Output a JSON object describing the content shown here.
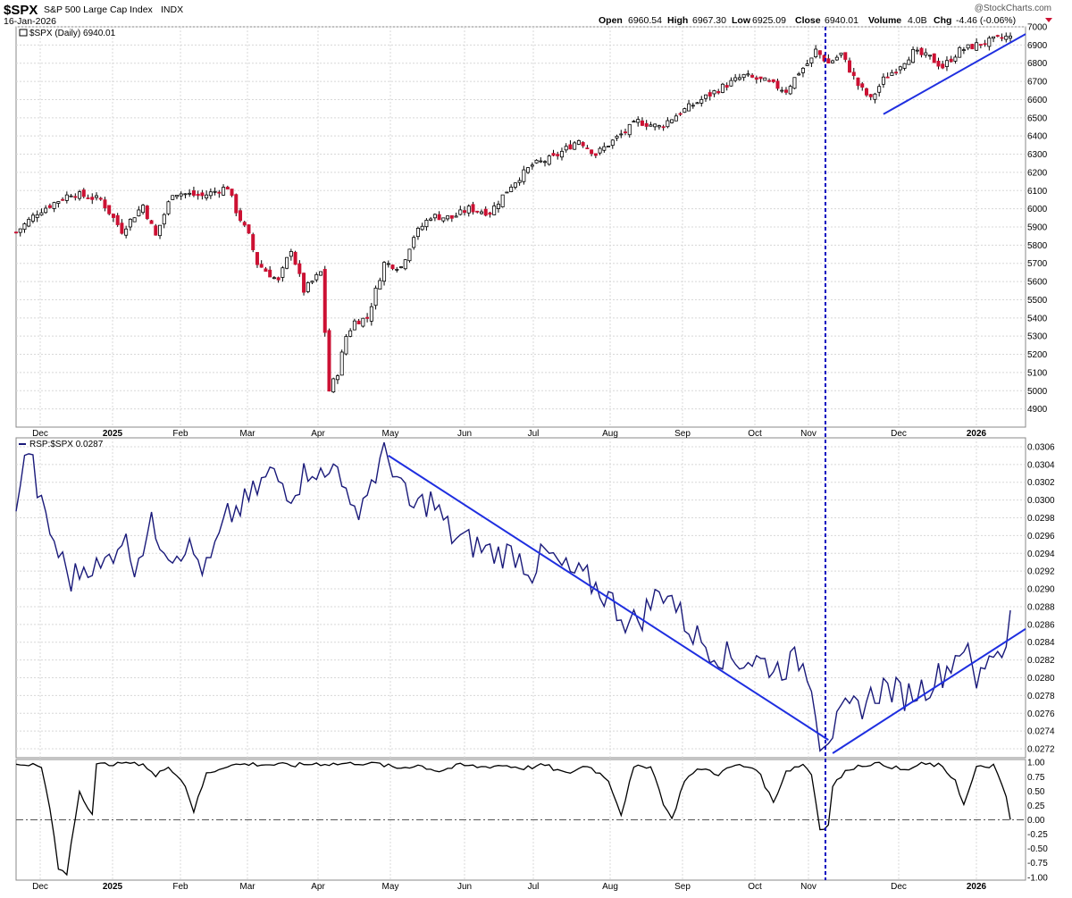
{
  "header": {
    "symbol": "$SPX",
    "name": "S&P 500 Large Cap Index",
    "exchange": "INDX",
    "date": "16-Jan-2026",
    "watermark": "@StockCharts.com",
    "ohlc": {
      "open_label": "Open",
      "open": "6960.54",
      "high_label": "High",
      "high": "6967.30",
      "low_label": "Low",
      "low": "6925.09",
      "close_label": "Close",
      "close": "6940.01",
      "volume_label": "Volume",
      "volume": "4.0B",
      "chg_label": "Chg",
      "chg": "-4.46 (-0.06%)"
    }
  },
  "months": [
    "Dec",
    "2025",
    "Feb",
    "Mar",
    "Apr",
    "May",
    "Jun",
    "Jul",
    "Aug",
    "Sep",
    "Oct",
    "Nov",
    "Dec",
    "2026"
  ],
  "colors": {
    "up": "#ffffff",
    "down": "#cc1133",
    "wick": "#000000",
    "ratio_line": "#1a1a7a",
    "trendline": "#1f2fe0",
    "corr_line": "#000000",
    "grid": "#d8d8d8",
    "marker": "#0000c0"
  },
  "chart_data": [
    {
      "type": "candlestick",
      "legend": "$SPX (Daily) 6940.01",
      "ylim": [
        4800,
        7000
      ],
      "y_ticks": [
        4900,
        5000,
        5100,
        5200,
        5300,
        5400,
        5500,
        5600,
        5700,
        5800,
        5900,
        6000,
        6100,
        6200,
        6300,
        6400,
        6500,
        6600,
        6700,
        6800,
        6900,
        7000
      ],
      "close_anchors": [
        [
          0,
          5870
        ],
        [
          5,
          5980
        ],
        [
          13,
          6085
        ],
        [
          20,
          6050
        ],
        [
          25,
          5880
        ],
        [
          30,
          6020
        ],
        [
          33,
          5850
        ],
        [
          37,
          6090
        ],
        [
          44,
          6070
        ],
        [
          50,
          6120
        ],
        [
          52,
          5990
        ],
        [
          55,
          5850
        ],
        [
          57,
          5700
        ],
        [
          62,
          5600
        ],
        [
          65,
          5780
        ],
        [
          68,
          5550
        ],
        [
          72,
          5650
        ],
        [
          74,
          5000
        ],
        [
          76,
          5100
        ],
        [
          78,
          5300
        ],
        [
          80,
          5380
        ],
        [
          83,
          5400
        ],
        [
          87,
          5700
        ],
        [
          91,
          5680
        ],
        [
          94,
          5850
        ],
        [
          98,
          5960
        ],
        [
          103,
          5950
        ],
        [
          107,
          6000
        ],
        [
          112,
          5980
        ],
        [
          117,
          6130
        ],
        [
          122,
          6240
        ],
        [
          127,
          6280
        ],
        [
          133,
          6380
        ],
        [
          137,
          6300
        ],
        [
          142,
          6390
        ],
        [
          147,
          6480
        ],
        [
          152,
          6450
        ],
        [
          157,
          6530
        ],
        [
          162,
          6600
        ],
        [
          167,
          6670
        ],
        [
          172,
          6730
        ],
        [
          177,
          6700
        ],
        [
          182,
          6650
        ],
        [
          185,
          6750
        ],
        [
          188,
          6820
        ],
        [
          189,
          6870
        ],
        [
          192,
          6800
        ],
        [
          195,
          6850
        ],
        [
          199,
          6680
        ],
        [
          202,
          6600
        ],
        [
          205,
          6710
        ],
        [
          208,
          6770
        ],
        [
          212,
          6860
        ],
        [
          216,
          6830
        ],
        [
          219,
          6780
        ],
        [
          223,
          6870
        ],
        [
          227,
          6900
        ],
        [
          230,
          6920
        ],
        [
          234,
          6944
        ],
        [
          235,
          6940
        ]
      ],
      "trendline": {
        "from": [
          205,
          6520
        ],
        "to": [
          240,
          6960
        ]
      }
    },
    {
      "type": "line",
      "legend": "RSP:$SPX 0.0287",
      "ylim": [
        0.0271,
        0.0307
      ],
      "y_ticks": [
        0.0272,
        0.0274,
        0.0276,
        0.0278,
        0.028,
        0.0282,
        0.0284,
        0.0286,
        0.0288,
        0.029,
        0.0292,
        0.0294,
        0.0296,
        0.0298,
        0.03,
        0.0302,
        0.0304,
        0.0306
      ],
      "anchors": [
        [
          0,
          0.03
        ],
        [
          3,
          0.0306
        ],
        [
          6,
          0.0299
        ],
        [
          10,
          0.0294
        ],
        [
          13,
          0.0291
        ],
        [
          17,
          0.0293
        ],
        [
          20,
          0.0292
        ],
        [
          25,
          0.0296
        ],
        [
          28,
          0.0293
        ],
        [
          32,
          0.0297
        ],
        [
          37,
          0.0294
        ],
        [
          40,
          0.0295
        ],
        [
          45,
          0.0292
        ],
        [
          50,
          0.0298
        ],
        [
          55,
          0.03
        ],
        [
          60,
          0.0303
        ],
        [
          65,
          0.0301
        ],
        [
          70,
          0.0304
        ],
        [
          73,
          0.0302
        ],
        [
          76,
          0.0305
        ],
        [
          79,
          0.0298
        ],
        [
          83,
          0.0301
        ],
        [
          87,
          0.0305
        ],
        [
          89,
          0.0304
        ],
        [
          93,
          0.0299
        ],
        [
          98,
          0.03
        ],
        [
          103,
          0.0296
        ],
        [
          108,
          0.0295
        ],
        [
          113,
          0.0294
        ],
        [
          118,
          0.0294
        ],
        [
          122,
          0.0292
        ],
        [
          125,
          0.0294
        ],
        [
          130,
          0.0292
        ],
        [
          135,
          0.0291
        ],
        [
          140,
          0.0289
        ],
        [
          145,
          0.0286
        ],
        [
          148,
          0.0287
        ],
        [
          151,
          0.0289
        ],
        [
          154,
          0.029
        ],
        [
          157,
          0.0287
        ],
        [
          160,
          0.0285
        ],
        [
          165,
          0.0283
        ],
        [
          170,
          0.0282
        ],
        [
          175,
          0.0282
        ],
        [
          180,
          0.0281
        ],
        [
          185,
          0.0282
        ],
        [
          188,
          0.028
        ],
        [
          190,
          0.0273
        ],
        [
          193,
          0.0274
        ],
        [
          196,
          0.0276
        ],
        [
          200,
          0.0277
        ],
        [
          205,
          0.0279
        ],
        [
          210,
          0.0278
        ],
        [
          215,
          0.0279
        ],
        [
          220,
          0.0281
        ],
        [
          224,
          0.0284
        ],
        [
          227,
          0.0279
        ],
        [
          230,
          0.0283
        ],
        [
          233,
          0.0283
        ],
        [
          235,
          0.0287
        ]
      ],
      "trendlines": [
        {
          "from": [
            88,
            0.0305
          ],
          "to": [
            192,
            0.0273
          ]
        },
        {
          "from": [
            193,
            0.02715
          ],
          "to": [
            240,
            0.02855
          ]
        }
      ]
    },
    {
      "type": "line",
      "ylim": [
        -1.05,
        1.05
      ],
      "y_ticks": [
        1.0,
        0.75,
        0.5,
        0.25,
        0.0,
        -0.25,
        -0.5,
        -0.75,
        -1.0
      ],
      "y_tick_labels": [
        "1.00",
        "0.75",
        "0.50",
        "0.25",
        "0.00",
        "-0.25",
        "-0.50",
        "-0.75",
        "-1.00"
      ],
      "anchors": [
        [
          0,
          0.95
        ],
        [
          3,
          0.98
        ],
        [
          6,
          0.9
        ],
        [
          8,
          0.2
        ],
        [
          10,
          -0.85
        ],
        [
          12,
          -0.95
        ],
        [
          13,
          -0.4
        ],
        [
          15,
          0.5
        ],
        [
          18,
          0.1
        ],
        [
          19,
          0.95
        ],
        [
          25,
          1.0
        ],
        [
          30,
          0.98
        ],
        [
          33,
          0.75
        ],
        [
          36,
          0.95
        ],
        [
          40,
          0.6
        ],
        [
          42,
          0.15
        ],
        [
          45,
          0.8
        ],
        [
          50,
          0.95
        ],
        [
          55,
          0.97
        ],
        [
          60,
          0.96
        ],
        [
          66,
          0.95
        ],
        [
          71,
          0.98
        ],
        [
          76,
          0.97
        ],
        [
          80,
          0.99
        ],
        [
          85,
          0.98
        ],
        [
          90,
          0.9
        ],
        [
          95,
          0.95
        ],
        [
          100,
          0.85
        ],
        [
          105,
          0.95
        ],
        [
          110,
          0.92
        ],
        [
          115,
          0.95
        ],
        [
          120,
          0.9
        ],
        [
          125,
          0.95
        ],
        [
          130,
          0.8
        ],
        [
          135,
          0.95
        ],
        [
          140,
          0.7
        ],
        [
          143,
          0.1
        ],
        [
          146,
          0.9
        ],
        [
          150,
          0.95
        ],
        [
          153,
          0.3
        ],
        [
          155,
          0.0
        ],
        [
          158,
          0.7
        ],
        [
          162,
          0.9
        ],
        [
          166,
          0.8
        ],
        [
          170,
          0.95
        ],
        [
          175,
          0.9
        ],
        [
          179,
          0.3
        ],
        [
          182,
          0.85
        ],
        [
          186,
          0.97
        ],
        [
          188,
          0.8
        ],
        [
          190,
          -0.15
        ],
        [
          192,
          -0.1
        ],
        [
          193,
          0.6
        ],
        [
          197,
          0.9
        ],
        [
          202,
          0.98
        ],
        [
          206,
          0.95
        ],
        [
          210,
          0.85
        ],
        [
          214,
          0.97
        ],
        [
          218,
          0.95
        ],
        [
          222,
          0.7
        ],
        [
          224,
          0.25
        ],
        [
          227,
          0.9
        ],
        [
          231,
          0.95
        ],
        [
          234,
          0.4
        ],
        [
          235,
          0.0
        ]
      ],
      "zero_line": 0.0
    }
  ]
}
